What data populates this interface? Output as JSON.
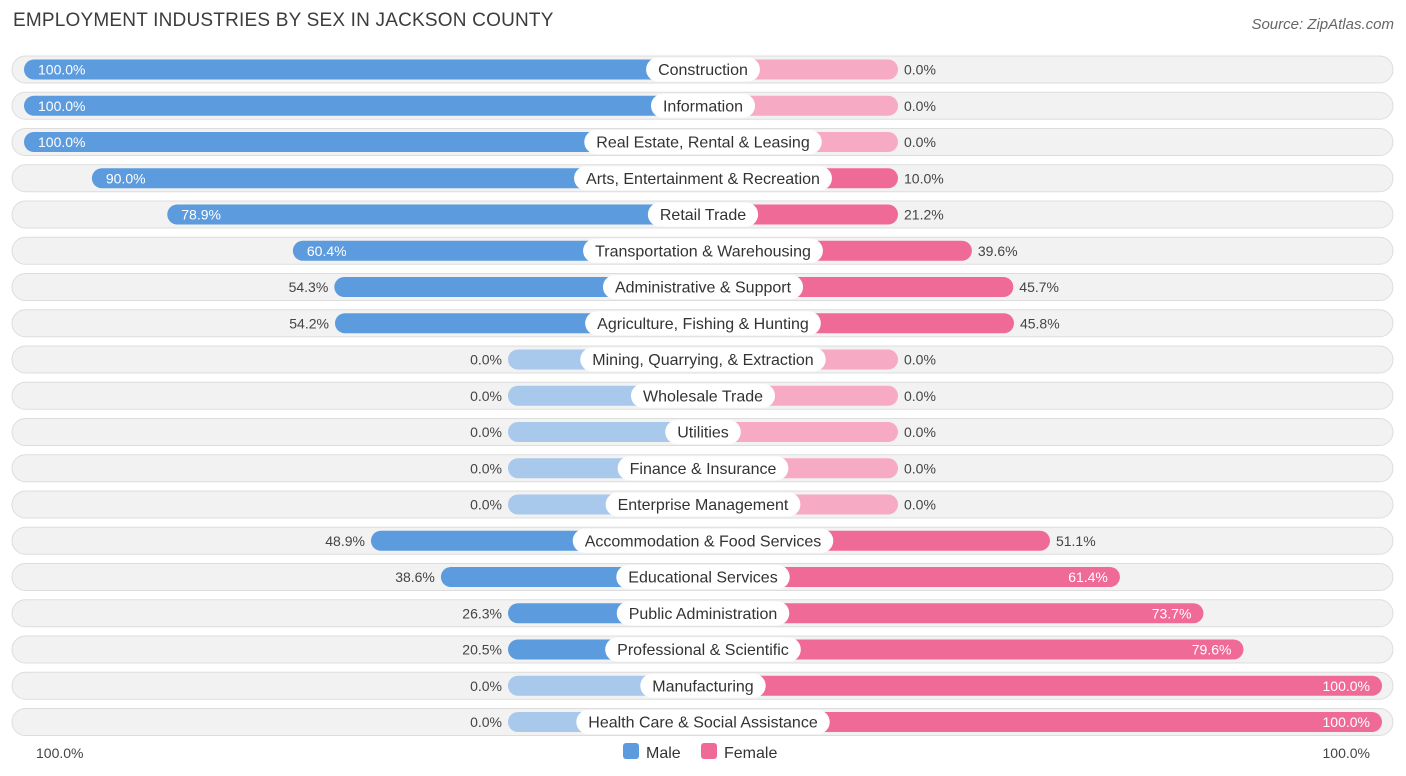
{
  "title": "EMPLOYMENT INDUSTRIES BY SEX IN JACKSON COUNTY",
  "source": "Source: ZipAtlas.com",
  "colors": {
    "male": "#5b9bde",
    "male_light": "#a8c8ec",
    "female": "#f06a98",
    "female_light": "#f6aac4",
    "row_bg": "#f2f2f2",
    "row_border": "#dddddd"
  },
  "chart_data": {
    "type": "bar",
    "orientation": "horizontal-diverging",
    "title": "EMPLOYMENT INDUSTRIES BY SEX IN JACKSON COUNTY",
    "categories": [
      "Construction",
      "Information",
      "Real Estate, Rental & Leasing",
      "Arts, Entertainment & Recreation",
      "Retail Trade",
      "Transportation & Warehousing",
      "Administrative & Support",
      "Agriculture, Fishing & Hunting",
      "Mining, Quarrying, & Extraction",
      "Wholesale Trade",
      "Utilities",
      "Finance & Insurance",
      "Enterprise Management",
      "Accommodation & Food Services",
      "Educational Services",
      "Public Administration",
      "Professional & Scientific",
      "Manufacturing",
      "Health Care & Social Assistance"
    ],
    "series": [
      {
        "name": "Male",
        "values": [
          100.0,
          100.0,
          100.0,
          90.0,
          78.9,
          60.4,
          54.3,
          54.2,
          0.0,
          0.0,
          0.0,
          0.0,
          0.0,
          48.9,
          38.6,
          26.3,
          20.5,
          0.0,
          0.0
        ],
        "labels": [
          "100.0%",
          "100.0%",
          "100.0%",
          "90.0%",
          "78.9%",
          "60.4%",
          "54.3%",
          "54.2%",
          "0.0%",
          "0.0%",
          "0.0%",
          "0.0%",
          "0.0%",
          "48.9%",
          "38.6%",
          "26.3%",
          "20.5%",
          "0.0%",
          "0.0%"
        ]
      },
      {
        "name": "Female",
        "values": [
          0.0,
          0.0,
          0.0,
          10.0,
          21.2,
          39.6,
          45.7,
          45.8,
          0.0,
          0.0,
          0.0,
          0.0,
          0.0,
          51.1,
          61.4,
          73.7,
          79.6,
          100.0,
          100.0
        ],
        "labels": [
          "0.0%",
          "0.0%",
          "0.0%",
          "10.0%",
          "21.2%",
          "39.6%",
          "45.7%",
          "45.8%",
          "0.0%",
          "0.0%",
          "0.0%",
          "0.0%",
          "0.0%",
          "51.1%",
          "61.4%",
          "73.7%",
          "79.6%",
          "100.0%",
          "100.0%"
        ]
      }
    ],
    "axis": {
      "left_label": "100.0%",
      "right_label": "100.0%",
      "range": [
        0,
        100
      ]
    },
    "legend": {
      "position": "bottom-center",
      "items": [
        "Male",
        "Female"
      ]
    }
  }
}
